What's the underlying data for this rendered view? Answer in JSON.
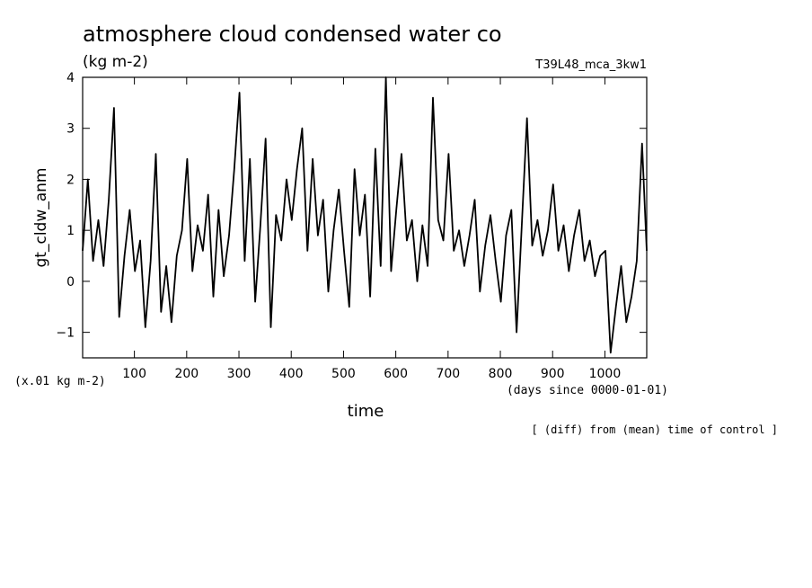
{
  "chart_data": {
    "type": "line",
    "title": "atmosphere cloud condensed water co",
    "subtitle_left": "(kg m-2)",
    "subtitle_right": "T39L48_mca_3kw1",
    "ylabel": "gt_cldw_anm",
    "y_unit_note": "(x.01 kg m-2)",
    "xlabel": "time",
    "x_unit_note": "(days since 0000-01-01)",
    "footnote": "[ (diff) from (mean) time of control ]",
    "xlim": [
      1,
      1080
    ],
    "ylim": [
      -1.5,
      4
    ],
    "x_ticks": [
      100,
      200,
      300,
      400,
      500,
      600,
      700,
      800,
      900,
      1000
    ],
    "x_tick_labels": [
      "100",
      "200",
      "300",
      "400",
      "500",
      "600",
      "700",
      "800",
      "900",
      "1000"
    ],
    "y_ticks": [
      -1,
      0,
      1,
      2,
      3,
      4
    ],
    "y_tick_labels": [
      "−1",
      "0",
      "1",
      "2",
      "3",
      "4"
    ],
    "line_color": "#000000",
    "grid": false,
    "series": [
      {
        "x": [
          1,
          11,
          21,
          31,
          41,
          51,
          61,
          71,
          81,
          91,
          101,
          111,
          121,
          131,
          141,
          151,
          161,
          171,
          181,
          191,
          201,
          211,
          221,
          231,
          241,
          251,
          261,
          271,
          281,
          291,
          301,
          311,
          321,
          331,
          341,
          351,
          361,
          371,
          381,
          391,
          401,
          411,
          421,
          431,
          441,
          451,
          461,
          471,
          481,
          491,
          501,
          511,
          521,
          531,
          541,
          551,
          561,
          571,
          581,
          591,
          601,
          611,
          621,
          631,
          641,
          651,
          661,
          671,
          681,
          691,
          701,
          711,
          721,
          731,
          741,
          751,
          761,
          771,
          781,
          791,
          801,
          811,
          821,
          831,
          841,
          851,
          861,
          871,
          881,
          891,
          901,
          911,
          921,
          931,
          941,
          951,
          961,
          971,
          981,
          991,
          1001,
          1011,
          1021,
          1031,
          1041,
          1051,
          1061,
          1071,
          1080
        ],
        "y": [
          0.6,
          2.0,
          0.4,
          1.2,
          0.3,
          1.6,
          3.4,
          -0.7,
          0.5,
          1.4,
          0.2,
          0.8,
          -0.9,
          0.4,
          2.5,
          -0.6,
          0.3,
          -0.8,
          0.5,
          1.0,
          2.4,
          0.2,
          1.1,
          0.6,
          1.7,
          -0.3,
          1.4,
          0.1,
          0.9,
          2.2,
          3.7,
          0.4,
          2.4,
          -0.4,
          1.1,
          2.8,
          -0.9,
          1.3,
          0.8,
          2.0,
          1.2,
          2.2,
          3.0,
          0.6,
          2.4,
          0.9,
          1.6,
          -0.2,
          1.0,
          1.8,
          0.6,
          -0.5,
          2.2,
          0.9,
          1.7,
          -0.3,
          2.6,
          0.3,
          4.0,
          0.2,
          1.4,
          2.5,
          0.8,
          1.2,
          0.0,
          1.1,
          0.3,
          3.6,
          1.2,
          0.8,
          2.5,
          0.6,
          1.0,
          0.3,
          0.9,
          1.6,
          -0.2,
          0.7,
          1.3,
          0.4,
          -0.4,
          0.9,
          1.4,
          -1.0,
          1.1,
          3.2,
          0.7,
          1.2,
          0.5,
          1.0,
          1.9,
          0.6,
          1.1,
          0.2,
          0.9,
          1.4,
          0.4,
          0.8,
          0.1,
          0.5,
          0.6,
          -1.4,
          -0.5,
          0.3,
          -0.8,
          -0.3,
          0.4,
          2.7,
          0.6
        ]
      }
    ]
  }
}
